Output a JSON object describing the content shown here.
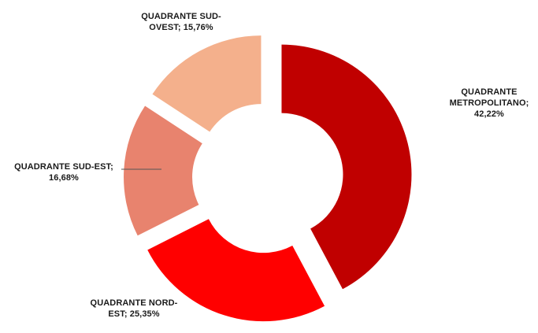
{
  "chart_data": {
    "type": "pie",
    "variant": "exploded-donut",
    "slices": [
      {
        "name": "QUADRANTE METROPOLITANO",
        "value": 42.22,
        "color": "#c00000",
        "label_lines": [
          "QUADRANTE",
          "METROPOLITANO;",
          "42,22%"
        ]
      },
      {
        "name": "QUADRANTE NORD-EST",
        "value": 25.35,
        "color": "#ff0000",
        "label_lines": [
          "QUADRANTE NORD-",
          "EST; 25,35%"
        ]
      },
      {
        "name": "QUADRANTE SUD-EST",
        "value": 16.68,
        "color": "#e8836e",
        "label_lines": [
          "QUADRANTE SUD-EST;",
          "16,68%"
        ]
      },
      {
        "name": "QUADRANTE SUD-OVEST",
        "value": 15.76,
        "color": "#f4b08c",
        "label_lines": [
          "QUADRANTE SUD-",
          "OVEST; 15,76%"
        ]
      }
    ],
    "legend": "none",
    "data_labels": "outside"
  }
}
